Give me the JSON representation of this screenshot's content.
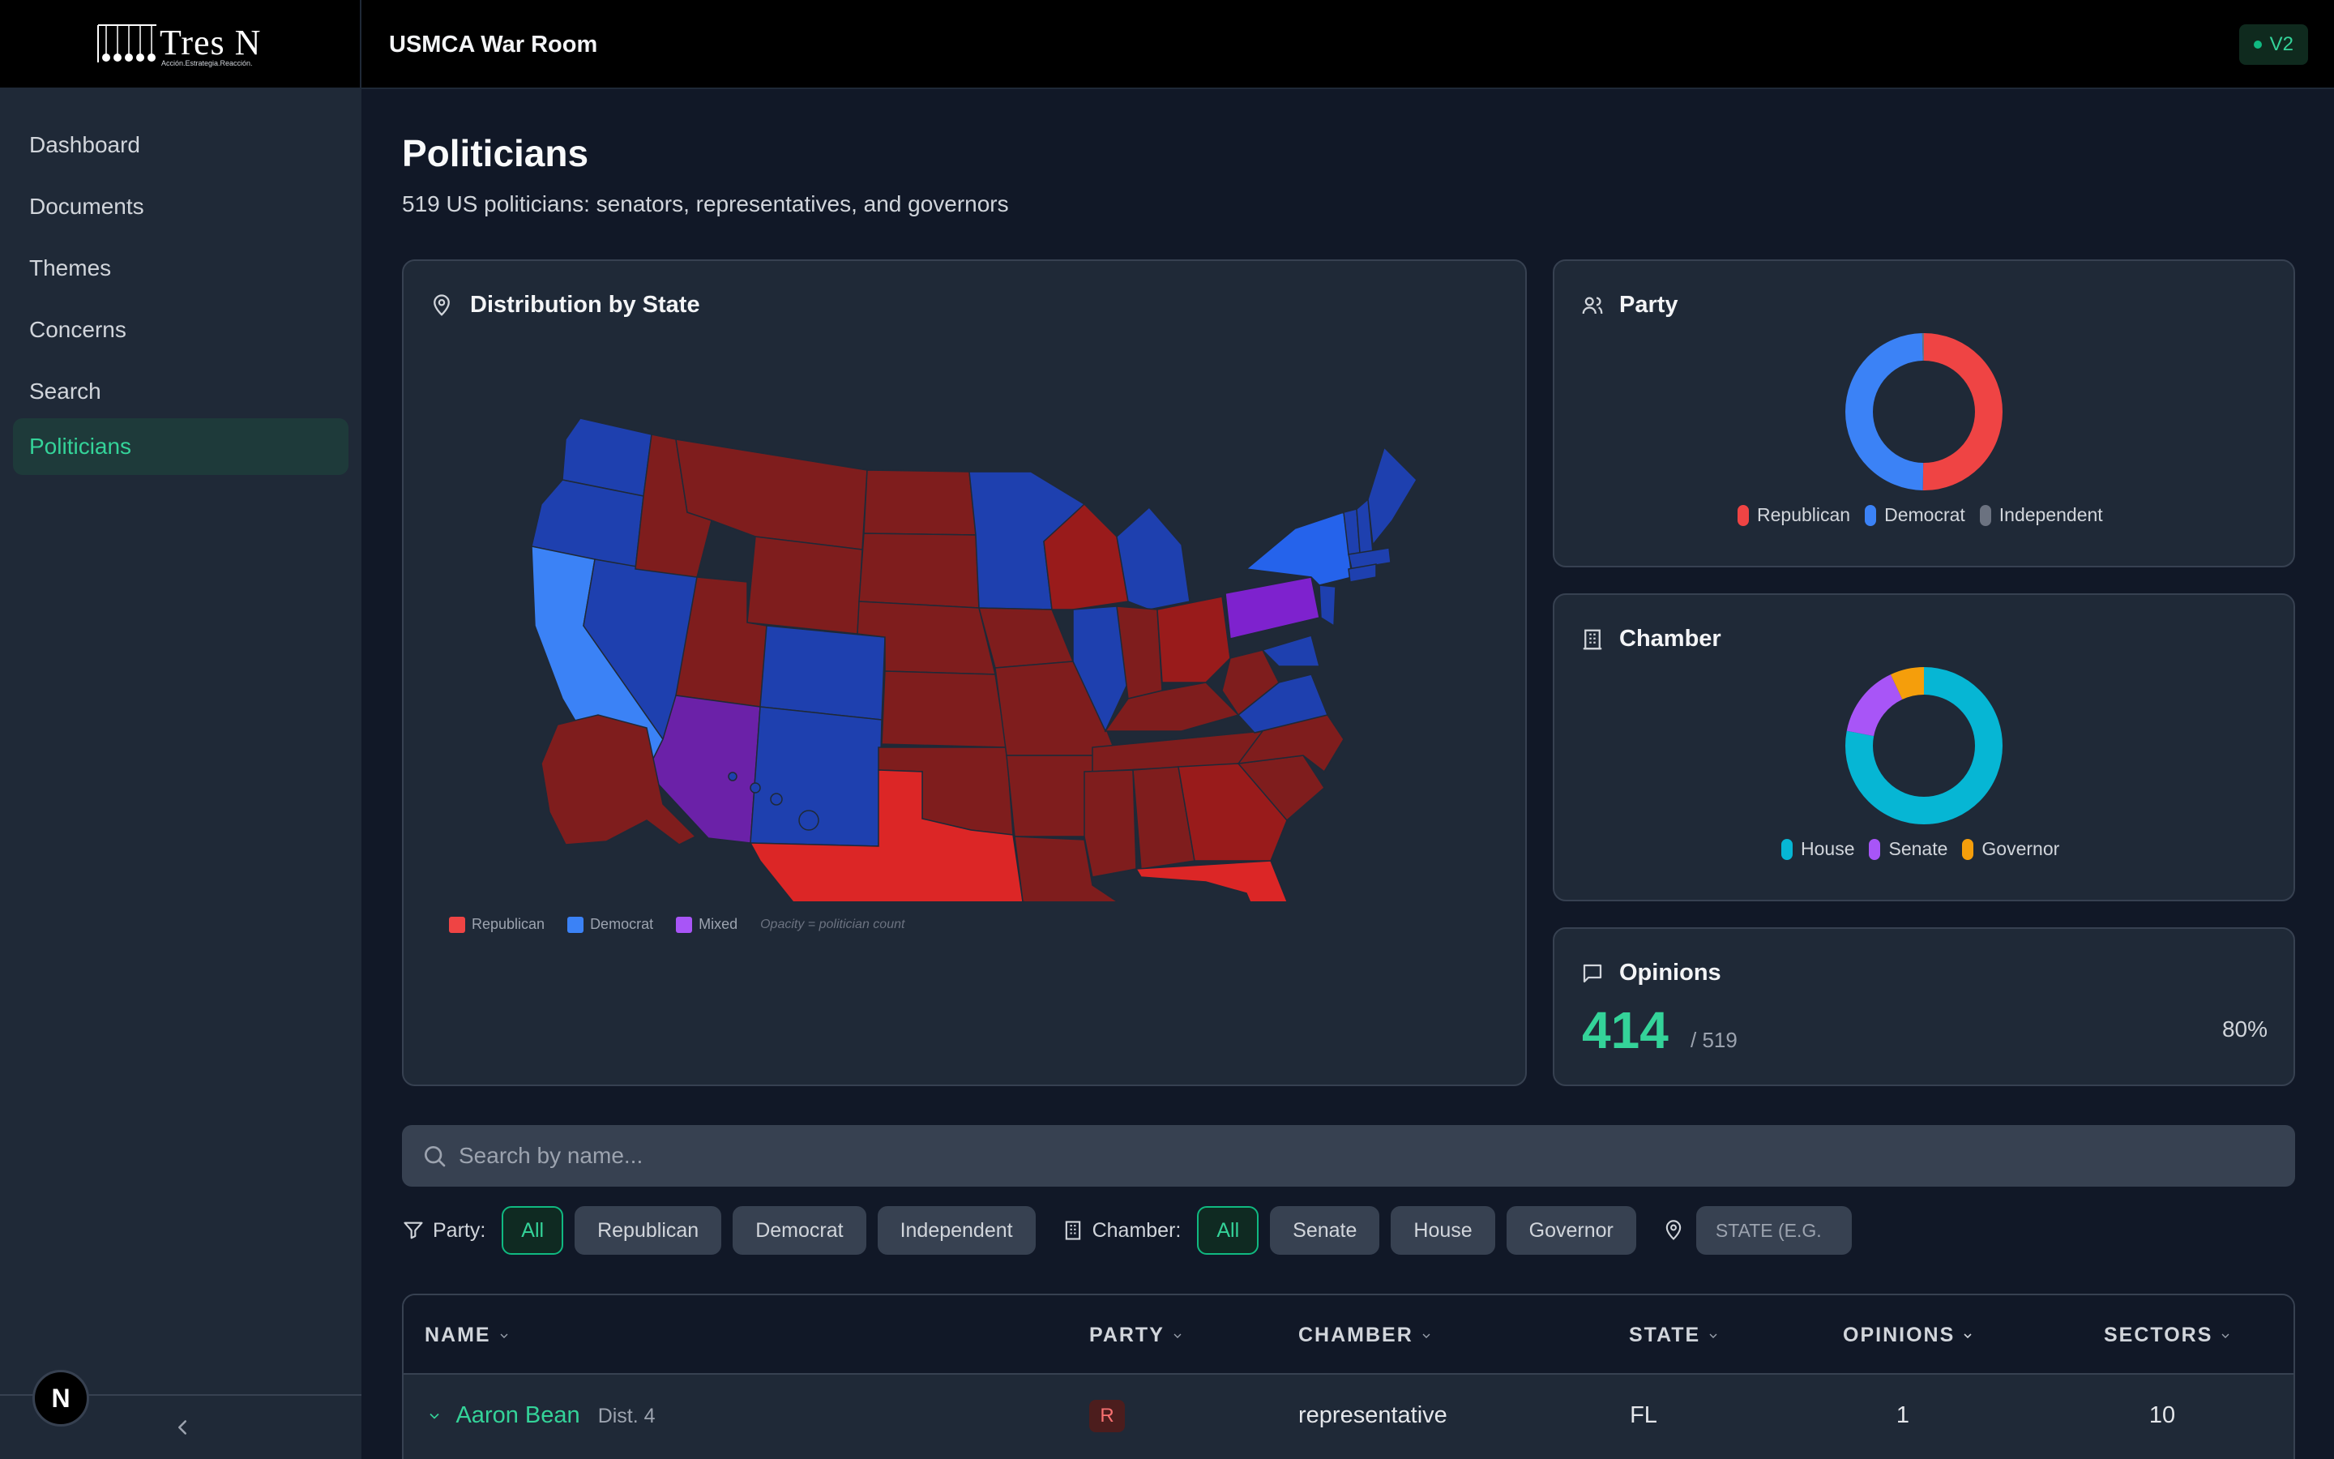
{
  "app": {
    "title": "USMCA War Room",
    "version": "V2",
    "logo_text": "Tres N",
    "logo_tagline": "Acción.Estrategia.Reacción."
  },
  "sidebar": {
    "items": [
      {
        "label": "Dashboard"
      },
      {
        "label": "Documents"
      },
      {
        "label": "Themes"
      },
      {
        "label": "Concerns"
      },
      {
        "label": "Search"
      },
      {
        "label": "Politicians",
        "active": true
      }
    ],
    "badge": "N"
  },
  "page": {
    "title": "Politicians",
    "subtitle": "519 US politicians: senators, representatives, and governors"
  },
  "map_card": {
    "title": "Distribution by State",
    "legend": [
      "Republican",
      "Democrat",
      "Mixed"
    ],
    "note": "Opacity = politician count",
    "colors": {
      "republican": "#ef4444",
      "democrat": "#3b82f6",
      "mixed": "#a855f7"
    }
  },
  "party_card": {
    "title": "Party",
    "legend": [
      {
        "label": "Republican",
        "color": "#ef4444"
      },
      {
        "label": "Democrat",
        "color": "#3b82f6"
      },
      {
        "label": "Independent",
        "color": "#6b7280"
      }
    ],
    "share": [
      0.502,
      0.494,
      0.004
    ]
  },
  "chamber_card": {
    "title": "Chamber",
    "legend": [
      {
        "label": "House",
        "color": "#06b6d4"
      },
      {
        "label": "Senate",
        "color": "#a855f7"
      },
      {
        "label": "Governor",
        "color": "#f59e0b"
      }
    ],
    "share": [
      0.78,
      0.15,
      0.07
    ]
  },
  "opinions_card": {
    "title": "Opinions",
    "value": "414",
    "total": "/ 519",
    "percent": "80%"
  },
  "search": {
    "placeholder": "Search by name..."
  },
  "filters": {
    "party_label": "Party:",
    "party_options": [
      "All",
      "Republican",
      "Democrat",
      "Independent"
    ],
    "chamber_label": "Chamber:",
    "chamber_options": [
      "All",
      "Senate",
      "House",
      "Governor"
    ],
    "state_placeholder": "STATE (E.G."
  },
  "table": {
    "columns": [
      "NAME",
      "PARTY",
      "CHAMBER",
      "STATE",
      "OPINIONS",
      "SECTORS"
    ],
    "rows": [
      {
        "name": "Aaron Bean",
        "district": "Dist. 4",
        "party": "R",
        "chamber": "representative",
        "state": "FL",
        "opinions": "1",
        "sectors": "10"
      }
    ]
  }
}
